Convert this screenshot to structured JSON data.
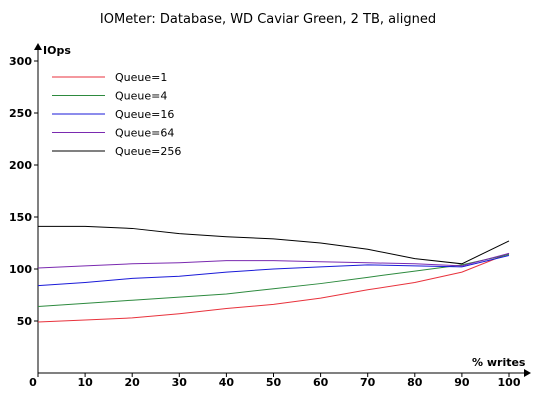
{
  "chart_data": {
    "type": "line",
    "title": "IOMeter: Database, WD Caviar Green, 2 TB, aligned",
    "xlabel": "% writes",
    "ylabel": "IOps",
    "xlim": [
      0,
      100
    ],
    "ylim": [
      0,
      300
    ],
    "x_ticks": [
      0,
      10,
      20,
      30,
      40,
      50,
      60,
      70,
      80,
      90,
      100
    ],
    "y_ticks": [
      50,
      100,
      150,
      200,
      250,
      300
    ],
    "legend_position": "top-left",
    "grid": false,
    "x": [
      0,
      10,
      20,
      30,
      40,
      50,
      60,
      70,
      80,
      90,
      100
    ],
    "series": [
      {
        "name": "Queue=1",
        "color": "#e8323c",
        "values": [
          49,
          51,
          53,
          57,
          62,
          66,
          72,
          80,
          87,
          97,
          115
        ]
      },
      {
        "name": "Queue=4",
        "color": "#2d8a3e",
        "values": [
          64,
          67,
          70,
          73,
          76,
          81,
          86,
          92,
          98,
          104,
          114
        ]
      },
      {
        "name": "Queue=16",
        "color": "#1a1ad8",
        "values": [
          84,
          87,
          91,
          93,
          97,
          100,
          102,
          104,
          103,
          102,
          113
        ]
      },
      {
        "name": "Queue=64",
        "color": "#7a2ab0",
        "values": [
          101,
          103,
          105,
          106,
          108,
          108,
          107,
          106,
          105,
          103,
          115
        ]
      },
      {
        "name": "Queue=256",
        "color": "#000000",
        "values": [
          141,
          141,
          139,
          134,
          131,
          129,
          125,
          119,
          110,
          105,
          127
        ]
      }
    ]
  }
}
